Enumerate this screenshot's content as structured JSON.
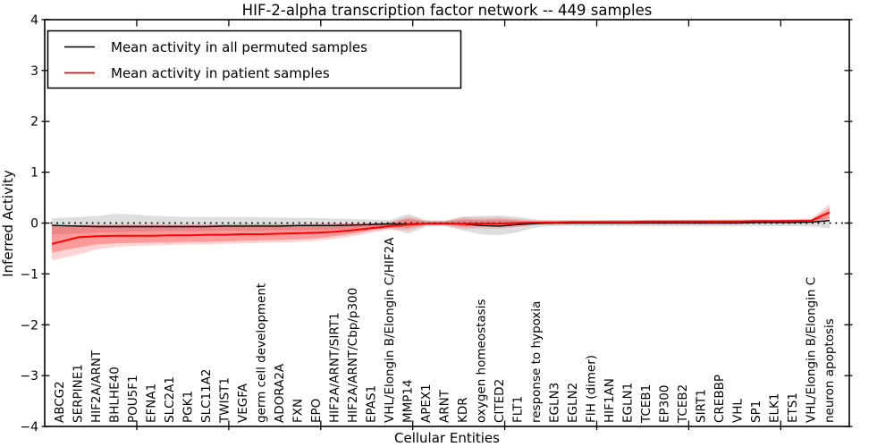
{
  "chart_data": {
    "type": "line",
    "title": "HIF-2-alpha transcription factor network -- 449 samples",
    "xlabel": "Cellular Entities",
    "ylabel": "Inferred Activity",
    "ylim": [
      -4,
      4
    ],
    "grid": false,
    "zero_line_style": "dotted",
    "legend_position": "upper left",
    "yticks": {
      "values": [
        4,
        3,
        2,
        1,
        0,
        -1,
        -2,
        -3,
        -4
      ],
      "labels": [
        "4",
        "3",
        "2",
        "1",
        "0",
        "−1",
        "−2",
        "−3",
        "−4"
      ]
    },
    "categories": [
      "ABCG2",
      "SERPINE1",
      "HIF2A/ARNT",
      "BHLHE40",
      "POU5F1",
      "EFNA1",
      "SLC2A1",
      "PGK1",
      "SLC11A2",
      "TWIST1",
      "VEGFA",
      "germ cell development",
      "ADORA2A",
      "FXN",
      "EPO",
      "HIF2A/ARNT/SIRT1",
      "HIF2A/ARNT/Cbp/p300",
      "EPAS1",
      "VHL/Elongin B/Elongin C/HIF2A",
      "MMP14",
      "APEX1",
      "ARNT",
      "KDR",
      "oxygen homeostasis",
      "CITED2",
      "FLT1",
      "response to hypoxia",
      "EGLN3",
      "EGLN2",
      "FIH (dimer)",
      "HIF1AN",
      "EGLN1",
      "TCEB1",
      "EP300",
      "TCEB2",
      "SIRT1",
      "CREBBP",
      "VHL",
      "SP1",
      "ELK1",
      "ETS1",
      "VHL/Elongin B/Elongin C",
      "neuron apoptosis"
    ],
    "series": [
      {
        "name": "Mean activity in all permuted samples",
        "color": "#000000",
        "band_color": "rgba(0,0,0,0.13)",
        "mean": [
          -0.05,
          -0.06,
          -0.07,
          -0.07,
          -0.07,
          -0.07,
          -0.07,
          -0.07,
          -0.07,
          -0.06,
          -0.06,
          -0.06,
          -0.06,
          -0.05,
          -0.05,
          -0.05,
          -0.04,
          -0.03,
          -0.02,
          -0.02,
          -0.01,
          -0.01,
          -0.02,
          -0.05,
          -0.06,
          -0.03,
          -0.01,
          0,
          0,
          0,
          0,
          0,
          0,
          0,
          0,
          0,
          0,
          0,
          0.01,
          0.01,
          0.01,
          0.02,
          0.05
        ],
        "band_hi": [
          0.1,
          0.12,
          0.14,
          0.18,
          0.17,
          0.14,
          0.13,
          0.12,
          0.12,
          0.12,
          0.12,
          0.11,
          0.11,
          0.1,
          0.1,
          0.09,
          0.08,
          0.07,
          0.06,
          0.18,
          0.06,
          0.05,
          0.13,
          0.14,
          0.15,
          0.12,
          0.07,
          0.06,
          0.06,
          0.06,
          0.06,
          0.06,
          0.06,
          0.06,
          0.06,
          0.06,
          0.06,
          0.06,
          0.06,
          0.06,
          0.07,
          0.07,
          0.12
        ],
        "band_lo": [
          -0.22,
          -0.2,
          -0.19,
          -0.18,
          -0.17,
          -0.16,
          -0.16,
          -0.16,
          -0.16,
          -0.15,
          -0.15,
          -0.15,
          -0.14,
          -0.14,
          -0.14,
          -0.13,
          -0.12,
          -0.11,
          -0.1,
          -0.21,
          -0.07,
          -0.06,
          -0.15,
          -0.22,
          -0.24,
          -0.18,
          -0.08,
          -0.06,
          -0.06,
          -0.06,
          -0.06,
          -0.06,
          -0.06,
          -0.06,
          -0.06,
          -0.06,
          -0.06,
          -0.06,
          -0.06,
          -0.06,
          -0.06,
          -0.07,
          -0.1
        ]
      },
      {
        "name": "Mean activity in patient samples",
        "color": "#ff0000",
        "outer_band_color": "rgba(255,0,0,0.17)",
        "inner_band_color": "rgba(255,0,0,0.27)",
        "mean": [
          -0.37,
          -0.28,
          -0.26,
          -0.25,
          -0.25,
          -0.25,
          -0.24,
          -0.24,
          -0.23,
          -0.23,
          -0.22,
          -0.22,
          -0.21,
          -0.2,
          -0.19,
          -0.17,
          -0.14,
          -0.1,
          -0.06,
          -0.03,
          -0.01,
          -0.01,
          -0.01,
          -0.01,
          -0.01,
          0,
          0.01,
          0.01,
          0.02,
          0.02,
          0.02,
          0.02,
          0.03,
          0.03,
          0.03,
          0.03,
          0.03,
          0.03,
          0.04,
          0.04,
          0.04,
          0.05,
          0.21
        ],
        "outer_hi": [
          -0.05,
          -0.04,
          -0.03,
          -0.03,
          -0.03,
          -0.03,
          -0.03,
          -0.03,
          -0.03,
          -0.03,
          -0.02,
          -0.02,
          -0.02,
          -0.02,
          -0.02,
          -0.01,
          -0.01,
          0,
          0.02,
          0.13,
          0.04,
          0.04,
          0.11,
          0.1,
          0.11,
          0.08,
          0.05,
          0.05,
          0.05,
          0.05,
          0.06,
          0.06,
          0.06,
          0.06,
          0.06,
          0.06,
          0.07,
          0.07,
          0.07,
          0.07,
          0.08,
          0.09,
          0.38
        ],
        "outer_lo": [
          -0.7,
          -0.62,
          -0.52,
          -0.47,
          -0.45,
          -0.44,
          -0.43,
          -0.42,
          -0.42,
          -0.41,
          -0.4,
          -0.39,
          -0.38,
          -0.37,
          -0.35,
          -0.31,
          -0.26,
          -0.19,
          -0.13,
          -0.14,
          -0.05,
          -0.05,
          -0.11,
          -0.1,
          -0.11,
          -0.08,
          -0.03,
          -0.03,
          -0.02,
          -0.02,
          -0.02,
          -0.02,
          -0.01,
          -0.01,
          -0.01,
          -0.01,
          -0.01,
          -0.01,
          0,
          0,
          0,
          0,
          0.05
        ],
        "inner_hi": [
          -0.05,
          -0.04,
          -0.04,
          -0.04,
          -0.04,
          -0.04,
          -0.04,
          -0.04,
          -0.04,
          -0.03,
          -0.03,
          -0.03,
          -0.03,
          -0.03,
          -0.02,
          -0.02,
          -0.01,
          -0.01,
          0.01,
          0.08,
          0.03,
          0.03,
          0.07,
          0.06,
          0.07,
          0.05,
          0.03,
          0.03,
          0.04,
          0.04,
          0.04,
          0.04,
          0.04,
          0.04,
          0.05,
          0.05,
          0.05,
          0.05,
          0.05,
          0.05,
          0.06,
          0.06,
          0.3
        ],
        "inner_lo": [
          -0.55,
          -0.48,
          -0.42,
          -0.4,
          -0.39,
          -0.38,
          -0.38,
          -0.37,
          -0.37,
          -0.36,
          -0.35,
          -0.34,
          -0.33,
          -0.32,
          -0.3,
          -0.26,
          -0.21,
          -0.15,
          -0.1,
          -0.09,
          -0.03,
          -0.03,
          -0.07,
          -0.06,
          -0.07,
          -0.05,
          -0.02,
          -0.01,
          -0.01,
          -0.01,
          -0.01,
          -0.01,
          0,
          0,
          0,
          0,
          0.01,
          0.01,
          0.01,
          0.01,
          0.01,
          0.02,
          0.1
        ]
      }
    ]
  }
}
